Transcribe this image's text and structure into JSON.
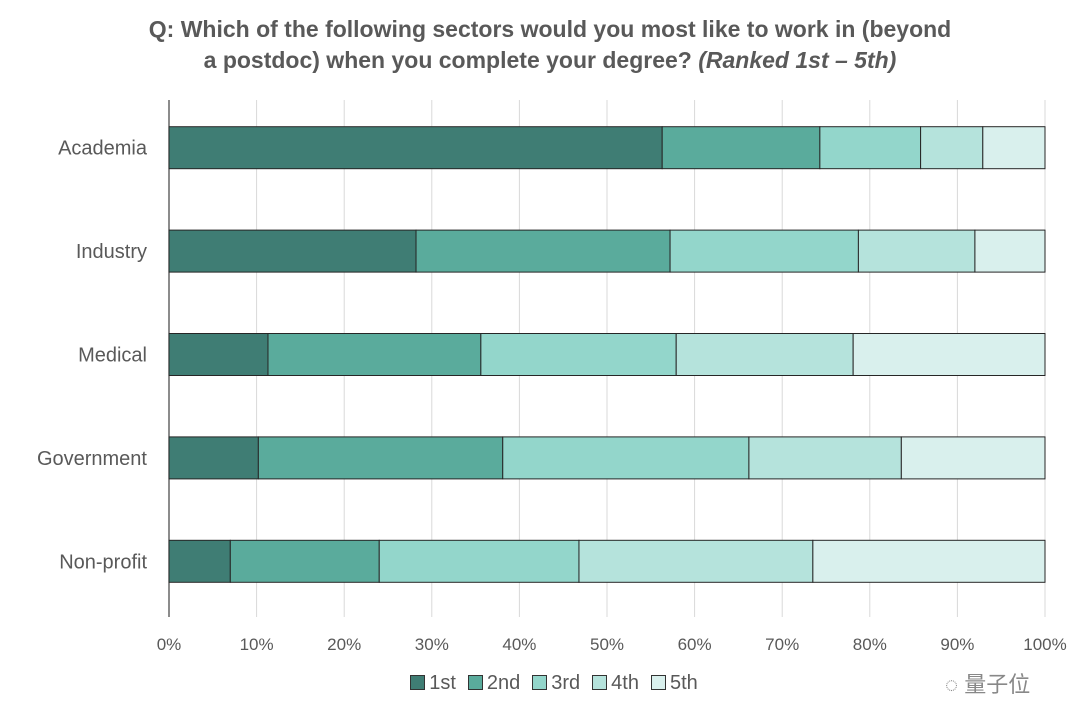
{
  "chart_data": {
    "type": "bar",
    "orientation": "horizontal",
    "stacked": "percent",
    "title_line1": "Q: Which of the following sectors would you most like to work in (beyond",
    "title_line2": "a postdoc) when you complete your degree?",
    "title_italic": "(Ranked 1st – 5th)",
    "categories": [
      "Academia",
      "Industry",
      "Medical",
      "Government",
      "Non-profit"
    ],
    "series": [
      {
        "name": "1st",
        "color": "#3f7d74",
        "values": [
          56.3,
          28.2,
          11.3,
          10.2,
          7.0
        ]
      },
      {
        "name": "2nd",
        "color": "#5aab9c",
        "values": [
          18.0,
          29.0,
          24.3,
          27.9,
          17.0
        ]
      },
      {
        "name": "3rd",
        "color": "#93d6cb",
        "values": [
          11.5,
          21.5,
          22.3,
          28.1,
          22.8
        ]
      },
      {
        "name": "4th",
        "color": "#b5e3dc",
        "values": [
          7.1,
          13.3,
          20.2,
          17.4,
          26.7
        ]
      },
      {
        "name": "5th",
        "color": "#d9f0ed",
        "values": [
          7.1,
          8.0,
          21.9,
          16.4,
          26.5
        ]
      }
    ],
    "xlim": [
      0,
      100
    ],
    "xticks": [
      "0%",
      "10%",
      "20%",
      "30%",
      "40%",
      "50%",
      "60%",
      "70%",
      "80%",
      "90%",
      "100%"
    ],
    "grid": "vertical",
    "legend": "bottom"
  },
  "watermark": "量子位"
}
